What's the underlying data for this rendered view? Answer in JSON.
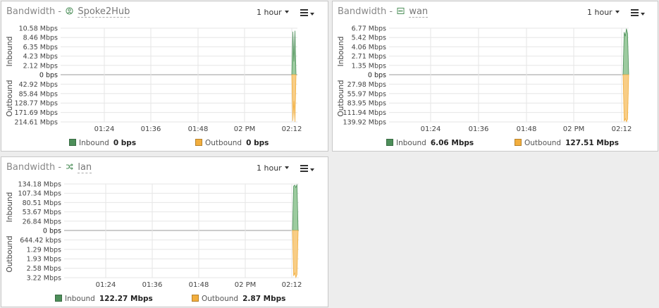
{
  "colors": {
    "inbound": "#4d8f5a",
    "outbound": "#f2ae3d",
    "inbound_fill": "#9ccb9f",
    "outbound_fill": "#f8cd86"
  },
  "widgets": [
    {
      "title_prefix": "Bandwidth -",
      "interface": "Spoke2Hub",
      "icon": "vpn-icon",
      "time_range": "1 hour",
      "axis_inbound": "Inbound",
      "axis_outbound": "Outbound",
      "legend": {
        "inbound_label": "Inbound",
        "inbound_value": "0 bps",
        "outbound_label": "Outbound",
        "outbound_value": "0 bps"
      }
    },
    {
      "title_prefix": "Bandwidth -",
      "interface": "wan",
      "icon": "ethernet-icon",
      "time_range": "1 hour",
      "axis_inbound": "Inbound",
      "axis_outbound": "Outbound",
      "legend": {
        "inbound_label": "Inbound",
        "inbound_value": "6.06 Mbps",
        "outbound_label": "Outbound",
        "outbound_value": "127.51 Mbps"
      }
    },
    {
      "title_prefix": "Bandwidth -",
      "interface": "lan",
      "icon": "shuffle-icon",
      "time_range": "1 hour",
      "axis_inbound": "Inbound",
      "axis_outbound": "Outbound",
      "legend": {
        "inbound_label": "Inbound",
        "inbound_value": "122.27 Mbps",
        "outbound_label": "Outbound",
        "outbound_value": "2.87 Mbps"
      }
    }
  ],
  "chart_data": [
    {
      "type": "area",
      "x_ticks": [
        "01:24",
        "01:36",
        "01:48",
        "02 PM",
        "02:12"
      ],
      "inbound_ticks": [
        "10.58 Mbps",
        "8.46 Mbps",
        "6.35 Mbps",
        "4.23 Mbps",
        "2.12 Mbps"
      ],
      "zero_label": "0 bps",
      "outbound_ticks": [
        "42.92 Mbps",
        "85.84 Mbps",
        "128.77 Mbps",
        "171.69 Mbps",
        "214.61 Mbps"
      ],
      "inbound_max": 10.58,
      "outbound_max": 214.61,
      "inbound_spike": [
        0,
        9.8,
        3.0,
        10.0,
        0
      ],
      "outbound_spike": [
        0,
        210.0,
        120.0,
        214.0,
        0
      ]
    },
    {
      "type": "area",
      "x_ticks": [
        "01:24",
        "01:36",
        "01:48",
        "02 PM",
        "02:12"
      ],
      "inbound_ticks": [
        "6.77 Mbps",
        "5.42 Mbps",
        "4.06 Mbps",
        "2.71 Mbps",
        "1.35 Mbps"
      ],
      "zero_label": "0 bps",
      "outbound_ticks": [
        "27.98 Mbps",
        "55.97 Mbps",
        "83.95 Mbps",
        "111.94 Mbps",
        "139.92 Mbps"
      ],
      "inbound_max": 6.77,
      "outbound_max": 139.92,
      "inbound_spike": [
        0,
        6.2,
        5.6,
        6.7,
        6.0,
        0
      ],
      "outbound_spike": [
        0,
        138.0,
        130.0,
        139.0,
        132.0,
        0
      ]
    },
    {
      "type": "area",
      "x_ticks": [
        "01:24",
        "01:36",
        "01:48",
        "02 PM",
        "02:12"
      ],
      "inbound_ticks": [
        "134.18 Mbps",
        "107.34 Mbps",
        "80.51 Mbps",
        "53.67 Mbps",
        "26.84 Mbps"
      ],
      "zero_label": "0 bps",
      "outbound_ticks": [
        "644.42 kbps",
        "1.29 Mbps",
        "1.93 Mbps",
        "2.58 Mbps",
        "3.22 Mbps"
      ],
      "inbound_max": 134.18,
      "outbound_max": 3.22,
      "inbound_spike": [
        0,
        128.0,
        131.0,
        124.0,
        133.0,
        0
      ],
      "outbound_spike": [
        0,
        3.1,
        2.9,
        3.2,
        3.0,
        0
      ]
    }
  ]
}
